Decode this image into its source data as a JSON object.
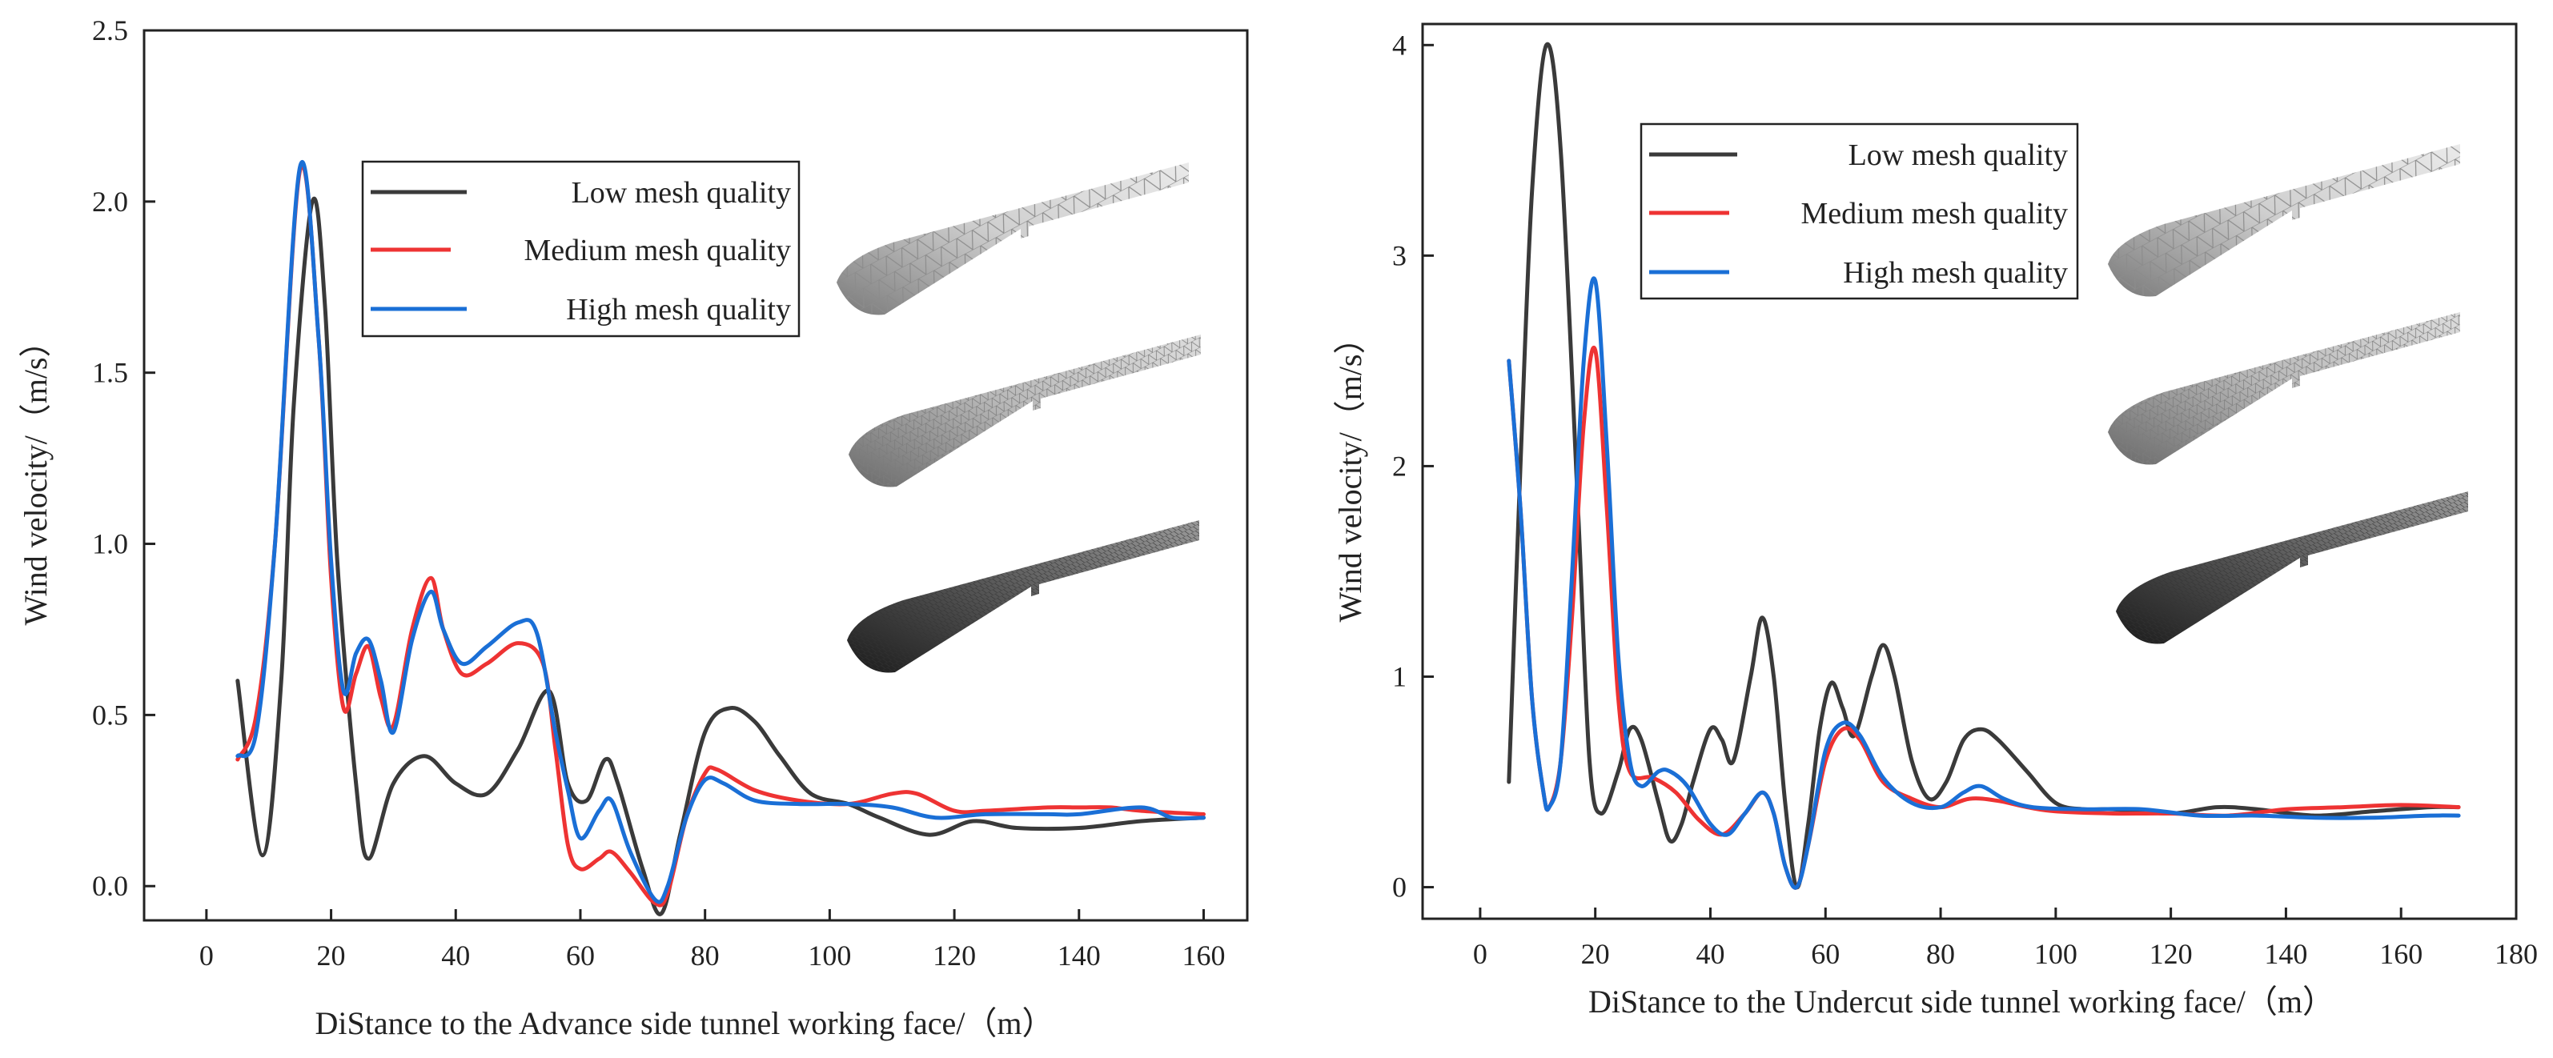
{
  "chart_data": [
    {
      "type": "line",
      "title": "",
      "xlabel": "DiStance to the Advance side tunnel working face/（m）",
      "ylabel": "Wind velocity/（m/s）",
      "xlim": [
        -10,
        167
      ],
      "ylim": [
        -0.1,
        2.5
      ],
      "x_ticks": [
        0,
        20,
        40,
        60,
        80,
        100,
        120,
        140,
        160
      ],
      "x_tick_labels": [
        "0",
        "20",
        "40",
        "60",
        "80",
        "100",
        "120",
        "140",
        "160"
      ],
      "y_ticks": [
        0,
        0.5,
        1.0,
        1.5,
        2.0,
        2.5
      ],
      "y_tick_labels": [
        "0.0",
        "0.5",
        "1.0",
        "1.5",
        "2.0",
        "2.5"
      ],
      "legend_position": "top-center",
      "insets": [
        "coarse-mesh-tunnel",
        "medium-mesh-tunnel",
        "fine-mesh-tunnel"
      ],
      "series": [
        {
          "name": "Low mesh quality",
          "color": "#3a3a3a",
          "points": [
            [
              5,
              0.6
            ],
            [
              9,
              0.09
            ],
            [
              12,
              0.6
            ],
            [
              14,
              1.4
            ],
            [
              17,
              2.0
            ],
            [
              19,
              1.7
            ],
            [
              21,
              0.95
            ],
            [
              24,
              0.3
            ],
            [
              26,
              0.08
            ],
            [
              30,
              0.3
            ],
            [
              35,
              0.38
            ],
            [
              40,
              0.3
            ],
            [
              45,
              0.27
            ],
            [
              50,
              0.4
            ],
            [
              55,
              0.57
            ],
            [
              58,
              0.3
            ],
            [
              61,
              0.25
            ],
            [
              64,
              0.37
            ],
            [
              66,
              0.3
            ],
            [
              70,
              0.05
            ],
            [
              73,
              -0.08
            ],
            [
              76,
              0.15
            ],
            [
              80,
              0.45
            ],
            [
              84,
              0.52
            ],
            [
              88,
              0.48
            ],
            [
              92,
              0.38
            ],
            [
              97,
              0.27
            ],
            [
              103,
              0.24
            ],
            [
              108,
              0.2
            ],
            [
              116,
              0.15
            ],
            [
              123,
              0.19
            ],
            [
              130,
              0.17
            ],
            [
              140,
              0.17
            ],
            [
              150,
              0.19
            ],
            [
              160,
              0.2
            ]
          ]
        },
        {
          "name": "Medium mesh quality",
          "color": "#ee3333",
          "points": [
            [
              5,
              0.37
            ],
            [
              8,
              0.5
            ],
            [
              11,
              1.0
            ],
            [
              15,
              2.09
            ],
            [
              18,
              1.6
            ],
            [
              20,
              0.9
            ],
            [
              22,
              0.52
            ],
            [
              24,
              0.62
            ],
            [
              26,
              0.7
            ],
            [
              28,
              0.55
            ],
            [
              30,
              0.47
            ],
            [
              33,
              0.75
            ],
            [
              36,
              0.9
            ],
            [
              38,
              0.75
            ],
            [
              41,
              0.62
            ],
            [
              45,
              0.65
            ],
            [
              50,
              0.71
            ],
            [
              54,
              0.65
            ],
            [
              56,
              0.4
            ],
            [
              58,
              0.12
            ],
            [
              60,
              0.05
            ],
            [
              63,
              0.08
            ],
            [
              65,
              0.1
            ],
            [
              68,
              0.04
            ],
            [
              72,
              -0.05
            ],
            [
              74,
              -0.02
            ],
            [
              77,
              0.2
            ],
            [
              80,
              0.33
            ],
            [
              82,
              0.34
            ],
            [
              88,
              0.28
            ],
            [
              95,
              0.25
            ],
            [
              103,
              0.24
            ],
            [
              110,
              0.27
            ],
            [
              114,
              0.27
            ],
            [
              120,
              0.22
            ],
            [
              125,
              0.22
            ],
            [
              135,
              0.23
            ],
            [
              140,
              0.23
            ],
            [
              145,
              0.23
            ],
            [
              150,
              0.22
            ],
            [
              160,
              0.21
            ]
          ]
        },
        {
          "name": "High mesh quality",
          "color": "#1a6fd6",
          "points": [
            [
              5,
              0.38
            ],
            [
              8,
              0.45
            ],
            [
              11,
              1.0
            ],
            [
              15,
              2.1
            ],
            [
              18,
              1.6
            ],
            [
              20,
              0.95
            ],
            [
              22,
              0.57
            ],
            [
              24,
              0.68
            ],
            [
              26,
              0.72
            ],
            [
              28,
              0.6
            ],
            [
              30,
              0.45
            ],
            [
              33,
              0.72
            ],
            [
              36,
              0.86
            ],
            [
              38,
              0.75
            ],
            [
              41,
              0.65
            ],
            [
              45,
              0.7
            ],
            [
              50,
              0.77
            ],
            [
              53,
              0.74
            ],
            [
              56,
              0.45
            ],
            [
              58,
              0.28
            ],
            [
              60,
              0.14
            ],
            [
              63,
              0.22
            ],
            [
              65,
              0.25
            ],
            [
              68,
              0.1
            ],
            [
              72,
              -0.04
            ],
            [
              74,
              0.0
            ],
            [
              77,
              0.2
            ],
            [
              80,
              0.31
            ],
            [
              83,
              0.3
            ],
            [
              88,
              0.25
            ],
            [
              95,
              0.24
            ],
            [
              103,
              0.24
            ],
            [
              110,
              0.23
            ],
            [
              117,
              0.2
            ],
            [
              125,
              0.21
            ],
            [
              135,
              0.21
            ],
            [
              140,
              0.21
            ],
            [
              150,
              0.23
            ],
            [
              155,
              0.2
            ],
            [
              160,
              0.2
            ]
          ]
        }
      ]
    },
    {
      "type": "line",
      "title": "",
      "xlabel": "DiStance to the Undercut side tunnel working face/（m）",
      "ylabel": "Wind velocity/（m/s）",
      "xlim": [
        -10,
        180
      ],
      "ylim": [
        -0.15,
        4.1
      ],
      "x_ticks": [
        0,
        20,
        40,
        60,
        80,
        100,
        120,
        140,
        160,
        180
      ],
      "x_tick_labels": [
        "0",
        "20",
        "40",
        "60",
        "80",
        "100",
        "120",
        "140",
        "160",
        "180"
      ],
      "y_ticks": [
        0,
        1,
        2,
        3,
        4
      ],
      "y_tick_labels": [
        "0",
        "1",
        "2",
        "3",
        "4"
      ],
      "legend_position": "top-center",
      "insets": [
        "coarse-mesh-tunnel",
        "medium-mesh-tunnel",
        "fine-mesh-tunnel"
      ],
      "series": [
        {
          "name": "Low mesh quality",
          "color": "#3a3a3a",
          "points": [
            [
              5,
              0.5
            ],
            [
              7,
              2.0
            ],
            [
              9,
              3.3
            ],
            [
              11.5,
              4.0
            ],
            [
              14,
              3.5
            ],
            [
              17,
              1.8
            ],
            [
              19,
              0.6
            ],
            [
              21,
              0.35
            ],
            [
              24,
              0.55
            ],
            [
              26,
              0.75
            ],
            [
              28,
              0.7
            ],
            [
              31,
              0.4
            ],
            [
              33,
              0.22
            ],
            [
              35,
              0.3
            ],
            [
              37,
              0.5
            ],
            [
              40,
              0.75
            ],
            [
              42,
              0.7
            ],
            [
              44,
              0.6
            ],
            [
              47,
              1.0
            ],
            [
              49,
              1.28
            ],
            [
              51,
              1.0
            ],
            [
              53,
              0.4
            ],
            [
              55,
              0.0
            ],
            [
              57,
              0.3
            ],
            [
              59,
              0.75
            ],
            [
              61,
              0.97
            ],
            [
              63,
              0.85
            ],
            [
              65,
              0.72
            ],
            [
              68,
              1.0
            ],
            [
              70,
              1.15
            ],
            [
              72,
              1.0
            ],
            [
              75,
              0.6
            ],
            [
              78,
              0.42
            ],
            [
              81,
              0.5
            ],
            [
              84,
              0.7
            ],
            [
              87,
              0.75
            ],
            [
              90,
              0.7
            ],
            [
              95,
              0.55
            ],
            [
              100,
              0.4
            ],
            [
              105,
              0.37
            ],
            [
              110,
              0.37
            ],
            [
              120,
              0.35
            ],
            [
              128,
              0.38
            ],
            [
              135,
              0.37
            ],
            [
              145,
              0.34
            ],
            [
              155,
              0.36
            ],
            [
              165,
              0.38
            ],
            [
              170,
              0.38
            ]
          ]
        },
        {
          "name": "Medium mesh quality",
          "color": "#ee3333",
          "points": [
            [
              5,
              2.5
            ],
            [
              7,
              1.8
            ],
            [
              9,
              0.9
            ],
            [
              11,
              0.45
            ],
            [
              12,
              0.38
            ],
            [
              14,
              0.6
            ],
            [
              16,
              1.3
            ],
            [
              18,
              2.2
            ],
            [
              20,
              2.55
            ],
            [
              22,
              1.8
            ],
            [
              24,
              0.9
            ],
            [
              26,
              0.55
            ],
            [
              30,
              0.52
            ],
            [
              34,
              0.45
            ],
            [
              38,
              0.32
            ],
            [
              42,
              0.25
            ],
            [
              46,
              0.35
            ],
            [
              49,
              0.45
            ],
            [
              51,
              0.35
            ],
            [
              53,
              0.1
            ],
            [
              55,
              0.0
            ],
            [
              57,
              0.2
            ],
            [
              60,
              0.6
            ],
            [
              63,
              0.75
            ],
            [
              66,
              0.7
            ],
            [
              70,
              0.5
            ],
            [
              75,
              0.42
            ],
            [
              80,
              0.38
            ],
            [
              85,
              0.42
            ],
            [
              90,
              0.41
            ],
            [
              95,
              0.38
            ],
            [
              100,
              0.36
            ],
            [
              110,
              0.35
            ],
            [
              120,
              0.35
            ],
            [
              130,
              0.34
            ],
            [
              140,
              0.37
            ],
            [
              150,
              0.38
            ],
            [
              160,
              0.39
            ],
            [
              170,
              0.38
            ]
          ]
        },
        {
          "name": "High mesh quality",
          "color": "#1a6fd6",
          "points": [
            [
              5,
              2.5
            ],
            [
              7,
              1.8
            ],
            [
              9,
              0.9
            ],
            [
              11,
              0.45
            ],
            [
              12,
              0.38
            ],
            [
              14,
              0.6
            ],
            [
              16,
              1.5
            ],
            [
              18,
              2.5
            ],
            [
              20,
              2.88
            ],
            [
              22,
              2.1
            ],
            [
              24,
              1.1
            ],
            [
              26,
              0.6
            ],
            [
              28,
              0.48
            ],
            [
              31,
              0.55
            ],
            [
              33,
              0.55
            ],
            [
              36,
              0.48
            ],
            [
              40,
              0.3
            ],
            [
              43,
              0.25
            ],
            [
              46,
              0.35
            ],
            [
              49,
              0.45
            ],
            [
              51,
              0.35
            ],
            [
              53,
              0.1
            ],
            [
              55,
              0.0
            ],
            [
              57,
              0.2
            ],
            [
              60,
              0.65
            ],
            [
              63,
              0.78
            ],
            [
              66,
              0.72
            ],
            [
              70,
              0.52
            ],
            [
              75,
              0.4
            ],
            [
              80,
              0.38
            ],
            [
              84,
              0.45
            ],
            [
              87,
              0.48
            ],
            [
              91,
              0.42
            ],
            [
              96,
              0.38
            ],
            [
              105,
              0.37
            ],
            [
              115,
              0.37
            ],
            [
              125,
              0.34
            ],
            [
              135,
              0.34
            ],
            [
              145,
              0.33
            ],
            [
              155,
              0.33
            ],
            [
              165,
              0.34
            ],
            [
              170,
              0.34
            ]
          ]
        }
      ]
    }
  ]
}
